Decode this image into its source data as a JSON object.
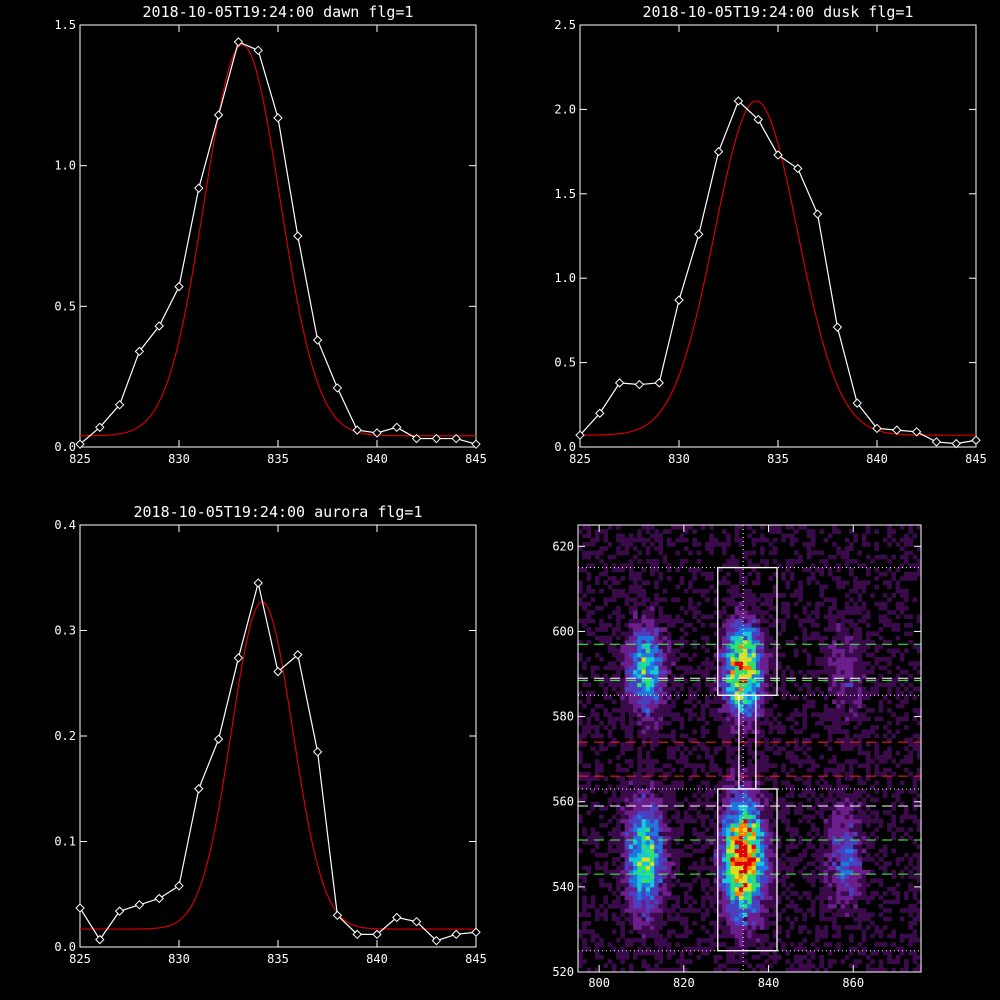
{
  "chart_data": [
    {
      "type": "line",
      "title": "2018-10-05T19:24:00 dawn flg=1",
      "xlim": [
        825,
        845
      ],
      "ylim": [
        0,
        1.5
      ],
      "xticks": [
        "825",
        "830",
        "835",
        "840",
        "845"
      ],
      "yticks": [
        "0.0",
        "0.5",
        "1.0",
        "1.5"
      ],
      "series": [
        {
          "kind": "measured",
          "color": "#ffffff",
          "marker": "diamond",
          "x": [
            825,
            826,
            827,
            828,
            829,
            830,
            831,
            832,
            833,
            834,
            835,
            836,
            837,
            838,
            839,
            840,
            841,
            842,
            843,
            844,
            845
          ],
          "y": [
            0.01,
            0.07,
            0.15,
            0.34,
            0.43,
            0.57,
            0.92,
            1.18,
            1.44,
            1.41,
            1.17,
            0.75,
            0.38,
            0.21,
            0.06,
            0.05,
            0.07,
            0.03,
            0.03,
            0.03,
            0.01
          ]
        },
        {
          "kind": "fit",
          "color": "#d40000",
          "gaussian": {
            "amplitude": 1.39,
            "center": 833.2,
            "sigma": 1.9,
            "offset": 0.04
          }
        }
      ]
    },
    {
      "type": "line",
      "title": "2018-10-05T19:24:00 dusk flg=1",
      "xlim": [
        825,
        845
      ],
      "ylim": [
        0,
        2.5
      ],
      "xticks": [
        "825",
        "830",
        "835",
        "840",
        "845"
      ],
      "yticks": [
        "0.0",
        "0.5",
        "1.0",
        "1.5",
        "2.0",
        "2.5"
      ],
      "series": [
        {
          "kind": "measured",
          "color": "#ffffff",
          "marker": "diamond",
          "x": [
            825,
            826,
            827,
            828,
            829,
            830,
            831,
            832,
            833,
            834,
            835,
            836,
            837,
            838,
            839,
            840,
            841,
            842,
            843,
            844,
            845
          ],
          "y": [
            0.07,
            0.2,
            0.38,
            0.37,
            0.38,
            0.87,
            1.26,
            1.75,
            2.05,
            1.94,
            1.73,
            1.65,
            1.38,
            0.71,
            0.26,
            0.11,
            0.1,
            0.09,
            0.03,
            0.02,
            0.04
          ]
        },
        {
          "kind": "fit",
          "color": "#d40000",
          "gaussian": {
            "amplitude": 1.98,
            "center": 833.9,
            "sigma": 2.1,
            "offset": 0.07
          }
        }
      ]
    },
    {
      "type": "line",
      "title": "2018-10-05T19:24:00 aurora flg=1",
      "xlim": [
        825,
        845
      ],
      "ylim": [
        0,
        0.4
      ],
      "xticks": [
        "825",
        "830",
        "835",
        "840",
        "845"
      ],
      "yticks": [
        "0.0",
        "0.1",
        "0.2",
        "0.3",
        "0.4"
      ],
      "series": [
        {
          "kind": "measured",
          "color": "#ffffff",
          "marker": "diamond",
          "x": [
            825,
            826,
            827,
            828,
            829,
            830,
            831,
            832,
            833,
            834,
            835,
            836,
            837,
            838,
            839,
            840,
            841,
            842,
            843,
            844,
            845
          ],
          "y": [
            0.037,
            0.007,
            0.034,
            0.04,
            0.046,
            0.058,
            0.15,
            0.197,
            0.274,
            0.345,
            0.261,
            0.277,
            0.185,
            0.03,
            0.012,
            0.012,
            0.028,
            0.024,
            0.006,
            0.012,
            0.014
          ]
        },
        {
          "kind": "fit",
          "color": "#d40000",
          "gaussian": {
            "amplitude": 0.31,
            "center": 834.2,
            "sigma": 1.55,
            "offset": 0.017
          }
        }
      ]
    },
    {
      "type": "heatmap",
      "title": "",
      "xlim": [
        795,
        876
      ],
      "ylim": [
        520,
        625
      ],
      "xticks": [
        "800",
        "820",
        "840",
        "860"
      ],
      "yticks": [
        "520",
        "540",
        "560",
        "580",
        "600",
        "620"
      ],
      "colormap": [
        "#000000",
        "#3a0a4a",
        "#6b1e8c",
        "#4a40c0",
        "#1f78e0",
        "#14c8d8",
        "#2ee070",
        "#d8e020",
        "#ff8000",
        "#e00000"
      ],
      "emission_spots": [
        {
          "x": 811,
          "y": 591,
          "sx": 3,
          "sy": 7,
          "peak": 0.55
        },
        {
          "x": 811,
          "y": 547,
          "sx": 3,
          "sy": 9,
          "peak": 0.6
        },
        {
          "x": 834,
          "y": 591,
          "sx": 3,
          "sy": 7,
          "peak": 0.85
        },
        {
          "x": 834,
          "y": 547,
          "sx": 3.3,
          "sy": 9,
          "peak": 1.0
        },
        {
          "x": 858,
          "y": 547,
          "sx": 3,
          "sy": 8,
          "peak": 0.3
        },
        {
          "x": 858,
          "y": 591,
          "sx": 3,
          "sy": 8,
          "peak": 0.18
        }
      ],
      "center_line_x": 834,
      "rectangles": [
        {
          "x0": 828,
          "x1": 842,
          "y0": 585,
          "y1": 615
        },
        {
          "x0": 828,
          "x1": 842,
          "y0": 525,
          "y1": 563
        },
        {
          "x0": 833,
          "x1": 837,
          "y0": 563,
          "y1": 585
        }
      ],
      "hlines": [
        {
          "y": 615,
          "color": "#ffffff",
          "style": "dotted"
        },
        {
          "y": 597,
          "color": "#3cff3c",
          "style": "dashed"
        },
        {
          "y": 589,
          "color": "#ffffff",
          "style": "dashed"
        },
        {
          "y": 588.5,
          "color": "#3cff3c",
          "style": "dashed"
        },
        {
          "y": 585,
          "color": "#ffffff",
          "style": "dotted"
        },
        {
          "y": 574,
          "color": "#ff2020",
          "style": "dashed"
        },
        {
          "y": 566,
          "color": "#ff2020",
          "style": "dashed"
        },
        {
          "y": 563,
          "color": "#ffffff",
          "style": "dotted"
        },
        {
          "y": 559,
          "color": "#ffffff",
          "style": "dashed"
        },
        {
          "y": 551,
          "color": "#3cff3c",
          "style": "dashed"
        },
        {
          "y": 543,
          "color": "#3cff3c",
          "style": "dashed"
        },
        {
          "y": 525,
          "color": "#ffffff",
          "style": "dotted"
        }
      ]
    }
  ]
}
